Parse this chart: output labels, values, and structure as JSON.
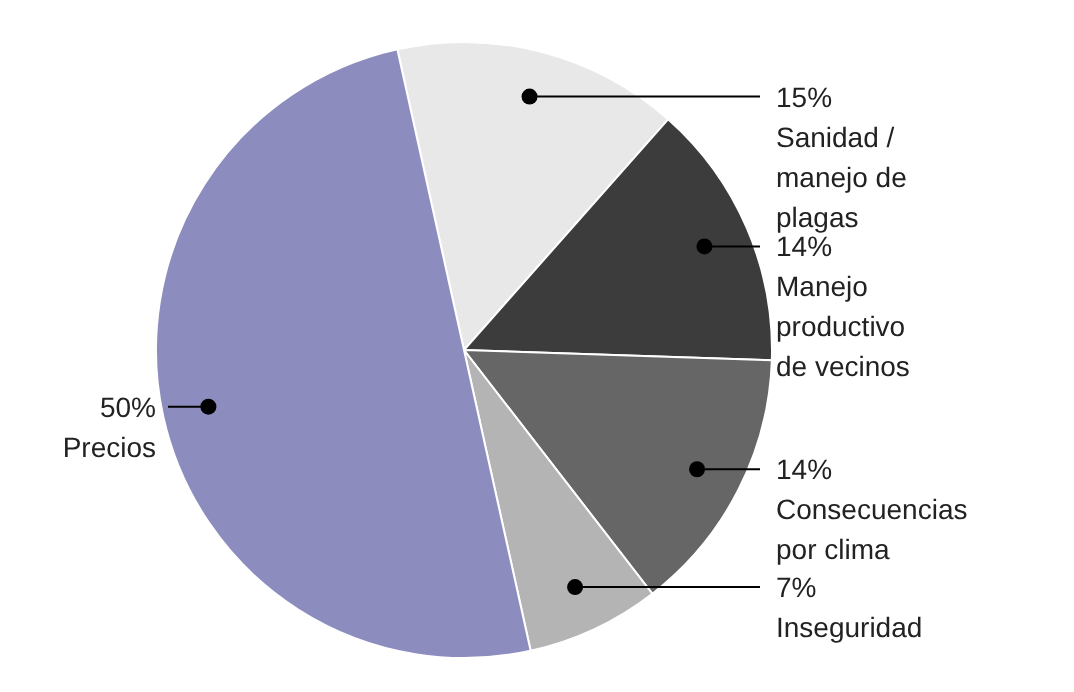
{
  "chart_data": {
    "type": "pie",
    "categories": [
      "Sanidad / manejo de plagas",
      "Manejo productivo de vecinos",
      "Consecuencias por clima",
      "Inseguridad",
      "Precios"
    ],
    "values": [
      15,
      14,
      14,
      7,
      50
    ],
    "colors": [
      "#e8e8e8",
      "#3c3c3c",
      "#666666",
      "#b4b4b4",
      "#8c8cbf"
    ],
    "value_labels": [
      "15%",
      "14%",
      "14%",
      "7%",
      "50%"
    ]
  }
}
